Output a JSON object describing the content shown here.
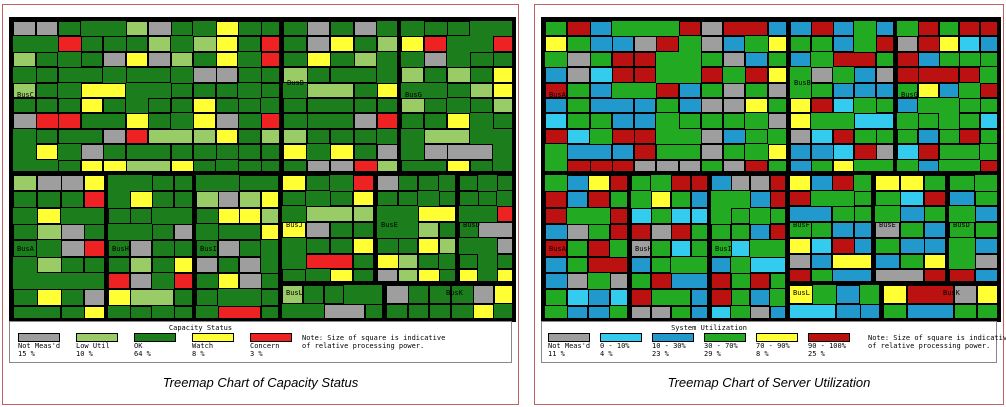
{
  "chart_data": [
    {
      "type": "treemap",
      "title": "Treemap Chart of Capacity Status",
      "legend_title": "Capacity Status",
      "note": "Note: Size of square is indicative of relative processing power.",
      "categories": [
        {
          "name": "Not Meas'd",
          "percent": "15 %",
          "color": "#9e9e9e"
        },
        {
          "name": "Low Util",
          "percent": "10 %",
          "color": "#99cc66"
        },
        {
          "name": "OK",
          "percent": "64 %",
          "color": "#1b7d1b"
        },
        {
          "name": "Watch",
          "percent": "8 %",
          "color": "#ffff33"
        },
        {
          "name": "Concern",
          "percent": "3 %",
          "color": "#ee2222"
        }
      ],
      "groups": [
        "BusC",
        "BusB",
        "BusG",
        "BusA",
        "BusH",
        "BusI",
        "BusJ",
        "BusE",
        "BusD",
        "BusL",
        "BusK"
      ]
    },
    {
      "type": "treemap",
      "title": "Treemap Chart of Server Utilization",
      "legend_title": "System Utilization",
      "note": "Note: Size of square is indicative of relative processing power.",
      "categories": [
        {
          "name": "Not Meas'd",
          "percent": "11 %",
          "color": "#9e9e9e"
        },
        {
          "name": "0 - 10%",
          "percent": "4 %",
          "color": "#33ccee"
        },
        {
          "name": "10 - 30%",
          "percent": "23 %",
          "color": "#2299cc"
        },
        {
          "name": "30 - 70%",
          "percent": "29 %",
          "color": "#22aa22"
        },
        {
          "name": "70 - 90%",
          "percent": "8 %",
          "color": "#ffff33"
        },
        {
          "name": "90 - 100%",
          "percent": "25 %",
          "color": "#bb1111"
        }
      ],
      "groups": [
        "BusA",
        "BusB",
        "BusG",
        "BusA",
        "BusH",
        "BusI",
        "BusF",
        "BusE",
        "BusD",
        "BusL",
        "BusK"
      ]
    }
  ]
}
